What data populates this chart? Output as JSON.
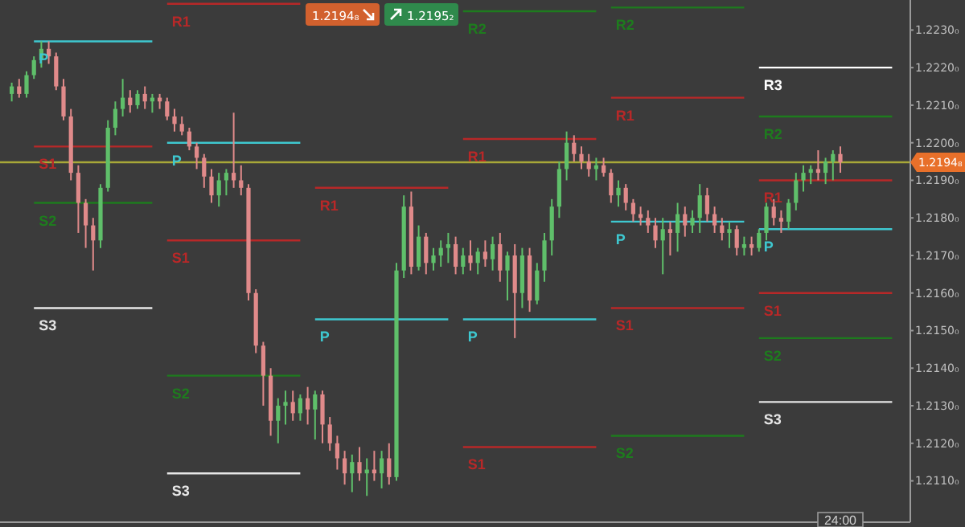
{
  "chart_data": {
    "type": "candlestick",
    "categories": [
      null,
      null,
      null,
      null,
      null,
      null,
      null,
      null,
      null,
      null,
      null,
      null,
      null,
      null,
      null,
      null,
      null,
      null,
      null,
      null,
      null,
      null,
      null,
      null,
      null,
      null,
      null,
      null,
      null,
      null,
      null,
      null,
      null,
      null,
      null,
      null,
      null,
      null,
      null,
      null,
      null,
      null,
      null,
      null,
      null,
      null,
      null,
      null,
      null,
      null,
      null,
      null,
      null,
      null,
      null,
      null,
      null,
      null,
      null,
      null,
      null,
      null,
      null,
      null,
      null,
      null,
      null,
      null,
      null,
      null,
      null,
      null,
      null,
      null,
      null,
      null,
      null,
      null,
      null,
      null,
      null,
      null,
      null,
      null,
      null,
      null,
      null,
      null,
      null,
      null,
      null,
      null,
      null,
      null,
      null,
      null,
      null,
      null,
      null,
      null,
      null,
      null,
      null,
      null,
      null,
      null,
      null,
      null,
      null,
      null,
      null,
      null,
      null,
      null,
      null,
      null,
      null,
      null,
      null,
      null
    ],
    "ohlc": [
      [
        1.2213,
        1.2216,
        1.2211,
        1.2215
      ],
      [
        1.2215,
        1.2217,
        1.2212,
        1.2213
      ],
      [
        1.2213,
        1.2219,
        1.2212,
        1.2218
      ],
      [
        1.2218,
        1.2223,
        1.2217,
        1.2222
      ],
      [
        1.2222,
        1.2227,
        1.222,
        1.2225
      ],
      [
        1.2225,
        1.2227,
        1.2221,
        1.2223
      ],
      [
        1.2223,
        1.2224,
        1.2214,
        1.2215
      ],
      [
        1.2215,
        1.2217,
        1.2206,
        1.2207
      ],
      [
        1.2207,
        1.2209,
        1.219,
        1.2192
      ],
      [
        1.2192,
        1.2194,
        1.2176,
        1.2184
      ],
      [
        1.2184,
        1.2185,
        1.2172,
        1.2178
      ],
      [
        1.2178,
        1.218,
        1.2166,
        1.2174
      ],
      [
        1.2174,
        1.2189,
        1.2172,
        1.2188
      ],
      [
        1.2188,
        1.2206,
        1.2187,
        1.2204
      ],
      [
        1.2204,
        1.2211,
        1.2202,
        1.2209
      ],
      [
        1.2209,
        1.2217,
        1.2207,
        1.2212
      ],
      [
        1.2212,
        1.2214,
        1.2208,
        1.221
      ],
      [
        1.221,
        1.2214,
        1.2209,
        1.2213
      ],
      [
        1.2213,
        1.2215,
        1.2209,
        1.2211
      ],
      [
        1.2211,
        1.2213,
        1.2208,
        1.2212
      ],
      [
        1.2212,
        1.2213,
        1.2209,
        1.2211
      ],
      [
        1.2211,
        1.2212,
        1.2206,
        1.2207
      ],
      [
        1.2207,
        1.2209,
        1.2203,
        1.2205
      ],
      [
        1.2205,
        1.2207,
        1.2202,
        1.2203
      ],
      [
        1.2203,
        1.2204,
        1.2198,
        1.2199
      ],
      [
        1.2199,
        1.22,
        1.2193,
        1.2196
      ],
      [
        1.2196,
        1.2197,
        1.2188,
        1.2191
      ],
      [
        1.2191,
        1.2193,
        1.2184,
        1.2186
      ],
      [
        1.2186,
        1.2192,
        1.2183,
        1.219
      ],
      [
        1.219,
        1.2193,
        1.2186,
        1.2192
      ],
      [
        1.2192,
        1.2208,
        1.2188,
        1.219
      ],
      [
        1.219,
        1.2194,
        1.2186,
        1.2188
      ],
      [
        1.2188,
        1.2189,
        1.2158,
        1.216
      ],
      [
        1.216,
        1.2161,
        1.2144,
        1.2146
      ],
      [
        1.2146,
        1.2147,
        1.213,
        1.2138
      ],
      [
        1.2138,
        1.214,
        1.2122,
        1.2126
      ],
      [
        1.2126,
        1.2132,
        1.212,
        1.213
      ],
      [
        1.213,
        1.2134,
        1.2125,
        1.2131
      ],
      [
        1.2131,
        1.2134,
        1.2126,
        1.2128
      ],
      [
        1.2128,
        1.2133,
        1.2126,
        1.2132
      ],
      [
        1.2132,
        1.2135,
        1.2125,
        1.2129
      ],
      [
        1.2129,
        1.2134,
        1.2121,
        1.2133
      ],
      [
        1.2133,
        1.2134,
        1.212,
        1.2125
      ],
      [
        1.2125,
        1.2127,
        1.2118,
        1.212
      ],
      [
        1.212,
        1.2122,
        1.2113,
        1.2116
      ],
      [
        1.2116,
        1.2118,
        1.2109,
        1.2112
      ],
      [
        1.2112,
        1.2117,
        1.2107,
        1.2115
      ],
      [
        1.2115,
        1.2119,
        1.211,
        1.2112
      ],
      [
        1.2112,
        1.2116,
        1.2106,
        1.2113
      ],
      [
        1.2113,
        1.2118,
        1.211,
        1.2112
      ],
      [
        1.2112,
        1.2118,
        1.2108,
        1.2116
      ],
      [
        1.2116,
        1.212,
        1.2109,
        1.2111
      ],
      [
        1.2111,
        1.2168,
        1.211,
        1.2166
      ],
      [
        1.2166,
        1.2186,
        1.2164,
        1.2183
      ],
      [
        1.2183,
        1.2187,
        1.2165,
        1.2167
      ],
      [
        1.2167,
        1.2178,
        1.2166,
        1.2175
      ],
      [
        1.2175,
        1.2176,
        1.2165,
        1.2168
      ],
      [
        1.2168,
        1.2172,
        1.2166,
        1.217
      ],
      [
        1.217,
        1.2174,
        1.2167,
        1.2172
      ],
      [
        1.2172,
        1.2176,
        1.2168,
        1.2173
      ],
      [
        1.2173,
        1.2175,
        1.2165,
        1.2167
      ],
      [
        1.2167,
        1.2172,
        1.2165,
        1.217
      ],
      [
        1.217,
        1.2174,
        1.2166,
        1.2168
      ],
      [
        1.2168,
        1.2172,
        1.2165,
        1.2171
      ],
      [
        1.2171,
        1.2174,
        1.2167,
        1.2169
      ],
      [
        1.2169,
        1.2175,
        1.2166,
        1.2173
      ],
      [
        1.2173,
        1.2176,
        1.2163,
        1.2166
      ],
      [
        1.2166,
        1.2171,
        1.2158,
        1.217
      ],
      [
        1.217,
        1.2173,
        1.2148,
        1.216
      ],
      [
        1.216,
        1.2172,
        1.2156,
        1.217
      ],
      [
        1.217,
        1.2172,
        1.2155,
        1.2158
      ],
      [
        1.2158,
        1.2168,
        1.2157,
        1.2166
      ],
      [
        1.2166,
        1.2176,
        1.2163,
        1.2174
      ],
      [
        1.2174,
        1.2185,
        1.217,
        1.2183
      ],
      [
        1.2183,
        1.2195,
        1.218,
        1.2193
      ],
      [
        1.2193,
        1.2203,
        1.219,
        1.22
      ],
      [
        1.22,
        1.2202,
        1.2195,
        1.2197
      ],
      [
        1.2197,
        1.2199,
        1.2193,
        1.2195
      ],
      [
        1.2195,
        1.2197,
        1.2191,
        1.2193
      ],
      [
        1.2193,
        1.2196,
        1.219,
        1.2194
      ],
      [
        1.2194,
        1.2196,
        1.2191,
        1.2192
      ],
      [
        1.2192,
        1.2193,
        1.2184,
        1.2186
      ],
      [
        1.2186,
        1.219,
        1.2183,
        1.2188
      ],
      [
        1.2188,
        1.2189,
        1.2182,
        1.2184
      ],
      [
        1.2184,
        1.2185,
        1.2179,
        1.2181
      ],
      [
        1.2181,
        1.2183,
        1.2178,
        1.218
      ],
      [
        1.218,
        1.2182,
        1.2176,
        1.2178
      ],
      [
        1.2178,
        1.218,
        1.2172,
        1.2174
      ],
      [
        1.2174,
        1.218,
        1.2165,
        1.2177
      ],
      [
        1.2177,
        1.2179,
        1.217,
        1.2176
      ],
      [
        1.2176,
        1.2184,
        1.2171,
        1.2181
      ],
      [
        1.2181,
        1.2183,
        1.2175,
        1.2178
      ],
      [
        1.2178,
        1.2182,
        1.2176,
        1.218
      ],
      [
        1.218,
        1.2189,
        1.2176,
        1.2186
      ],
      [
        1.2186,
        1.2188,
        1.2179,
        1.2181
      ],
      [
        1.2181,
        1.2183,
        1.2176,
        1.2178
      ],
      [
        1.2178,
        1.218,
        1.2174,
        1.2176
      ],
      [
        1.2176,
        1.2179,
        1.2172,
        1.2177
      ],
      [
        1.2177,
        1.2178,
        1.217,
        1.2172
      ],
      [
        1.2172,
        1.2175,
        1.217,
        1.2173
      ],
      [
        1.2173,
        1.2175,
        1.217,
        1.2172
      ],
      [
        1.2172,
        1.2177,
        1.2171,
        1.2176
      ],
      [
        1.2176,
        1.2184,
        1.2174,
        1.2183
      ],
      [
        1.2183,
        1.2185,
        1.2178,
        1.218
      ],
      [
        1.218,
        1.2182,
        1.2176,
        1.2179
      ],
      [
        1.2179,
        1.2185,
        1.2177,
        1.2184
      ],
      [
        1.2184,
        1.2192,
        1.2182,
        1.219
      ],
      [
        1.219,
        1.2194,
        1.2187,
        1.2192
      ],
      [
        1.2192,
        1.2194,
        1.2189,
        1.2193
      ],
      [
        1.2193,
        1.2198,
        1.219,
        1.2192
      ],
      [
        1.2192,
        1.2196,
        1.2189,
        1.2195
      ],
      [
        1.2195,
        1.2198,
        1.219,
        1.2197
      ],
      [
        1.2197,
        1.2199,
        1.2192,
        1.21948
      ],
      null,
      null,
      null,
      null,
      null,
      null,
      null
    ],
    "colors": [
      "#5fbf6a",
      "#e08a8a",
      "#5fbf6a",
      "#5fbf6a",
      "#5fbf6a",
      "#e08a8a",
      "#e08a8a",
      "#e08a8a",
      "#e08a8a",
      "#e08a8a",
      "#e08a8a",
      "#e08a8a",
      "#5fbf6a",
      "#5fbf6a",
      "#5fbf6a",
      "#5fbf6a",
      "#e08a8a",
      "#5fbf6a",
      "#e08a8a",
      "#5fbf6a",
      "#e08a8a",
      "#e08a8a",
      "#e08a8a",
      "#e08a8a",
      "#e08a8a",
      "#e08a8a",
      "#e08a8a",
      "#e08a8a",
      "#5fbf6a",
      "#5fbf6a",
      "#e08a8a",
      "#e08a8a",
      "#e08a8a",
      "#e08a8a",
      "#e08a8a",
      "#e08a8a",
      "#5fbf6a",
      "#5fbf6a",
      "#e08a8a",
      "#5fbf6a",
      "#e08a8a",
      "#5fbf6a",
      "#e08a8a",
      "#e08a8a",
      "#e08a8a",
      "#e08a8a",
      "#5fbf6a",
      "#e08a8a",
      "#5fbf6a",
      "#e08a8a",
      "#5fbf6a",
      "#e08a8a",
      "#5fbf6a",
      "#5fbf6a",
      "#e08a8a",
      "#5fbf6a",
      "#e08a8a",
      "#5fbf6a",
      "#5fbf6a",
      "#5fbf6a",
      "#e08a8a",
      "#5fbf6a",
      "#e08a8a",
      "#5fbf6a",
      "#e08a8a",
      "#5fbf6a",
      "#e08a8a",
      "#5fbf6a",
      "#e08a8a",
      "#5fbf6a",
      "#e08a8a",
      "#5fbf6a",
      "#5fbf6a",
      "#5fbf6a",
      "#5fbf6a",
      "#5fbf6a",
      "#e08a8a",
      "#e08a8a",
      "#e08a8a",
      "#5fbf6a",
      "#e08a8a",
      "#e08a8a",
      "#5fbf6a",
      "#e08a8a",
      "#e08a8a",
      "#e08a8a",
      "#e08a8a",
      "#e08a8a",
      "#5fbf6a",
      "#e08a8a",
      "#5fbf6a",
      "#e08a8a",
      "#5fbf6a",
      "#5fbf6a",
      "#e08a8a",
      "#e08a8a",
      "#e08a8a",
      "#5fbf6a",
      "#e08a8a",
      "#5fbf6a",
      "#e08a8a",
      "#5fbf6a",
      "#5fbf6a",
      "#e08a8a",
      "#e08a8a",
      "#5fbf6a",
      "#5fbf6a",
      "#5fbf6a",
      "#5fbf6a",
      "#e08a8a",
      "#5fbf6a",
      "#5fbf6a",
      "#e08a8a",
      null,
      null,
      null,
      null,
      null,
      null,
      null
    ],
    "series": [
      {
        "type": "line",
        "name": "P",
        "color": "#3ec8d0",
        "values": [
          null,
          null,
          null,
          1.2227,
          1.2227,
          1.2227,
          1.2227,
          1.2227,
          1.2227,
          1.2227,
          1.2227,
          1.2227,
          1.2227,
          1.2227,
          1.2227,
          1.2227,
          1.2227,
          1.2227,
          1.2227,
          1.2227,
          null,
          1.22,
          1.22,
          1.22,
          1.22,
          1.22,
          1.22,
          1.22,
          1.22,
          1.22,
          1.22,
          1.22,
          1.22,
          1.22,
          1.22,
          1.22,
          1.22,
          1.22,
          1.22,
          1.22,
          null,
          1.2153,
          1.2153,
          1.2153,
          1.2153,
          1.2153,
          1.2153,
          1.2153,
          1.2153,
          1.2153,
          1.2153,
          1.2153,
          1.2153,
          1.2153,
          1.2153,
          1.2153,
          1.2153,
          1.2153,
          1.2153,
          1.2153,
          null,
          1.2153,
          1.2153,
          1.2153,
          1.2153,
          1.2153,
          1.2153,
          1.2153,
          1.2153,
          1.2153,
          1.2153,
          1.2153,
          1.2153,
          1.2153,
          1.2153,
          1.2153,
          1.2153,
          1.2153,
          1.2153,
          1.2153,
          null,
          1.2179,
          1.2179,
          1.2179,
          1.2179,
          1.2179,
          1.2179,
          1.2179,
          1.2179,
          1.2179,
          1.2179,
          1.2179,
          1.2179,
          1.2179,
          1.2179,
          1.2179,
          1.2179,
          1.2179,
          1.2179,
          1.2179,
          null,
          1.2177,
          1.2177,
          1.2177,
          1.2177,
          1.2177,
          1.2177,
          1.2177,
          1.2177,
          1.2177,
          1.2177,
          1.2177,
          1.2177,
          1.2177,
          1.2177,
          1.2177,
          1.2177,
          1.2177,
          1.2177,
          1.2177
        ]
      },
      {
        "type": "line",
        "name": "R1",
        "color": "#b82828",
        "values": [
          null,
          null,
          null,
          null,
          null,
          null,
          null,
          null,
          null,
          null,
          null,
          null,
          null,
          null,
          null,
          null,
          null,
          null,
          null,
          null,
          null,
          1.2237,
          1.2237,
          1.2237,
          1.2237,
          1.2237,
          1.2237,
          1.2237,
          1.2237,
          1.2237,
          1.2237,
          1.2237,
          1.2237,
          1.2237,
          1.2237,
          1.2237,
          1.2237,
          1.2237,
          1.2237,
          1.2237,
          null,
          1.2188,
          1.2188,
          1.2188,
          1.2188,
          1.2188,
          1.2188,
          1.2188,
          1.2188,
          1.2188,
          1.2188,
          1.2188,
          1.2188,
          1.2188,
          1.2188,
          1.2188,
          1.2188,
          1.2188,
          1.2188,
          1.2188,
          null,
          1.2201,
          1.2201,
          1.2201,
          1.2201,
          1.2201,
          1.2201,
          1.2201,
          1.2201,
          1.2201,
          1.2201,
          1.2201,
          1.2201,
          1.2201,
          1.2201,
          1.2201,
          1.2201,
          1.2201,
          1.2201,
          1.2201,
          null,
          1.2212,
          1.2212,
          1.2212,
          1.2212,
          1.2212,
          1.2212,
          1.2212,
          1.2212,
          1.2212,
          1.2212,
          1.2212,
          1.2212,
          1.2212,
          1.2212,
          1.2212,
          1.2212,
          1.2212,
          1.2212,
          1.2212,
          null,
          1.219,
          1.219,
          1.219,
          1.219,
          1.219,
          1.219,
          1.219,
          1.219,
          1.219,
          1.219,
          1.219,
          1.219,
          1.219,
          1.219,
          1.219,
          1.219,
          1.219,
          1.219,
          1.219
        ]
      },
      {
        "type": "line",
        "name": "R2",
        "color": "#1e7b1e",
        "values": [
          null,
          null,
          null,
          null,
          null,
          null,
          null,
          null,
          null,
          null,
          null,
          null,
          null,
          null,
          null,
          null,
          null,
          null,
          null,
          null,
          null,
          null,
          null,
          null,
          null,
          null,
          null,
          null,
          null,
          null,
          null,
          null,
          null,
          null,
          null,
          null,
          null,
          null,
          null,
          null,
          null,
          null,
          null,
          null,
          null,
          null,
          null,
          null,
          null,
          null,
          null,
          null,
          null,
          null,
          null,
          null,
          null,
          null,
          null,
          null,
          null,
          1.2235,
          1.2235,
          1.2235,
          1.2235,
          1.2235,
          1.2235,
          1.2235,
          1.2235,
          1.2235,
          1.2235,
          1.2235,
          1.2235,
          1.2235,
          1.2235,
          1.2235,
          1.2235,
          1.2235,
          1.2235,
          1.2235,
          null,
          1.2236,
          1.2236,
          1.2236,
          1.2236,
          1.2236,
          1.2236,
          1.2236,
          1.2236,
          1.2236,
          1.2236,
          1.2236,
          1.2236,
          1.2236,
          1.2236,
          1.2236,
          1.2236,
          1.2236,
          1.2236,
          1.2236,
          null,
          1.2207,
          1.2207,
          1.2207,
          1.2207,
          1.2207,
          1.2207,
          1.2207,
          1.2207,
          1.2207,
          1.2207,
          1.2207,
          1.2207,
          1.2207,
          1.2207,
          1.2207,
          1.2207,
          1.2207,
          1.2207,
          1.2207
        ]
      },
      {
        "type": "line",
        "name": "R3",
        "color": "#ffffff",
        "values": [
          null,
          null,
          null,
          null,
          null,
          null,
          null,
          null,
          null,
          null,
          null,
          null,
          null,
          null,
          null,
          null,
          null,
          null,
          null,
          null,
          null,
          null,
          null,
          null,
          null,
          null,
          null,
          null,
          null,
          null,
          null,
          null,
          null,
          null,
          null,
          null,
          null,
          null,
          null,
          null,
          null,
          null,
          null,
          null,
          null,
          null,
          null,
          null,
          null,
          null,
          null,
          null,
          null,
          null,
          null,
          null,
          null,
          null,
          null,
          null,
          null,
          null,
          null,
          null,
          null,
          null,
          null,
          null,
          null,
          null,
          null,
          null,
          null,
          null,
          null,
          null,
          null,
          null,
          null,
          null,
          null,
          null,
          null,
          null,
          null,
          null,
          null,
          null,
          null,
          null,
          null,
          null,
          null,
          null,
          null,
          null,
          null,
          null,
          null,
          null,
          null,
          1.222,
          1.222,
          1.222,
          1.222,
          1.222,
          1.222,
          1.222,
          1.222,
          1.222,
          1.222,
          1.222,
          1.222,
          1.222,
          1.222,
          1.222,
          1.222,
          1.222,
          1.222,
          1.222
        ]
      },
      {
        "type": "line",
        "name": "S1",
        "color": "#b82828",
        "values": [
          null,
          null,
          null,
          1.2199,
          1.2199,
          1.2199,
          1.2199,
          1.2199,
          1.2199,
          1.2199,
          1.2199,
          1.2199,
          1.2199,
          1.2199,
          1.2199,
          1.2199,
          1.2199,
          1.2199,
          1.2199,
          1.2199,
          null,
          1.2174,
          1.2174,
          1.2174,
          1.2174,
          1.2174,
          1.2174,
          1.2174,
          1.2174,
          1.2174,
          1.2174,
          1.2174,
          1.2174,
          1.2174,
          1.2174,
          1.2174,
          1.2174,
          1.2174,
          1.2174,
          1.2174,
          null,
          null,
          null,
          null,
          null,
          null,
          null,
          null,
          null,
          null,
          null,
          null,
          null,
          null,
          null,
          null,
          null,
          null,
          null,
          null,
          null,
          1.2119,
          1.2119,
          1.2119,
          1.2119,
          1.2119,
          1.2119,
          1.2119,
          1.2119,
          1.2119,
          1.2119,
          1.2119,
          1.2119,
          1.2119,
          1.2119,
          1.2119,
          1.2119,
          1.2119,
          1.2119,
          1.2119,
          null,
          1.2156,
          1.2156,
          1.2156,
          1.2156,
          1.2156,
          1.2156,
          1.2156,
          1.2156,
          1.2156,
          1.2156,
          1.2156,
          1.2156,
          1.2156,
          1.2156,
          1.2156,
          1.2156,
          1.2156,
          1.2156,
          1.2156,
          null,
          1.216,
          1.216,
          1.216,
          1.216,
          1.216,
          1.216,
          1.216,
          1.216,
          1.216,
          1.216,
          1.216,
          1.216,
          1.216,
          1.216,
          1.216,
          1.216,
          1.216,
          1.216,
          1.216
        ]
      },
      {
        "type": "line",
        "name": "S2",
        "color": "#1e7b1e",
        "values": [
          null,
          null,
          null,
          1.2184,
          1.2184,
          1.2184,
          1.2184,
          1.2184,
          1.2184,
          1.2184,
          1.2184,
          1.2184,
          1.2184,
          1.2184,
          1.2184,
          1.2184,
          1.2184,
          1.2184,
          1.2184,
          1.2184,
          null,
          1.2138,
          1.2138,
          1.2138,
          1.2138,
          1.2138,
          1.2138,
          1.2138,
          1.2138,
          1.2138,
          1.2138,
          1.2138,
          1.2138,
          1.2138,
          1.2138,
          1.2138,
          1.2138,
          1.2138,
          1.2138,
          1.2138,
          null,
          null,
          null,
          null,
          null,
          null,
          null,
          null,
          null,
          null,
          null,
          null,
          null,
          null,
          null,
          null,
          null,
          null,
          null,
          null,
          null,
          null,
          null,
          null,
          null,
          null,
          null,
          null,
          null,
          null,
          null,
          null,
          null,
          null,
          null,
          null,
          null,
          null,
          null,
          null,
          null,
          1.2122,
          1.2122,
          1.2122,
          1.2122,
          1.2122,
          1.2122,
          1.2122,
          1.2122,
          1.2122,
          1.2122,
          1.2122,
          1.2122,
          1.2122,
          1.2122,
          1.2122,
          1.2122,
          1.2122,
          1.2122,
          1.2122,
          null,
          1.2148,
          1.2148,
          1.2148,
          1.2148,
          1.2148,
          1.2148,
          1.2148,
          1.2148,
          1.2148,
          1.2148,
          1.2148,
          1.2148,
          1.2148,
          1.2148,
          1.2148,
          1.2148,
          1.2148,
          1.2148,
          1.2148
        ]
      },
      {
        "type": "line",
        "name": "S3",
        "color": "#e6e6e6",
        "values": [
          null,
          null,
          null,
          1.2156,
          1.2156,
          1.2156,
          1.2156,
          1.2156,
          1.2156,
          1.2156,
          1.2156,
          1.2156,
          1.2156,
          1.2156,
          1.2156,
          1.2156,
          1.2156,
          1.2156,
          1.2156,
          1.2156,
          null,
          1.2112,
          1.2112,
          1.2112,
          1.2112,
          1.2112,
          1.2112,
          1.2112,
          1.2112,
          1.2112,
          1.2112,
          1.2112,
          1.2112,
          1.2112,
          1.2112,
          1.2112,
          1.2112,
          1.2112,
          1.2112,
          1.2112,
          null,
          null,
          null,
          null,
          null,
          null,
          null,
          null,
          null,
          null,
          null,
          null,
          null,
          null,
          null,
          null,
          null,
          null,
          null,
          null,
          null,
          null,
          null,
          null,
          null,
          null,
          null,
          null,
          null,
          null,
          null,
          null,
          null,
          null,
          null,
          null,
          null,
          null,
          null,
          null,
          null,
          null,
          null,
          null,
          null,
          null,
          null,
          null,
          null,
          null,
          null,
          null,
          null,
          null,
          null,
          null,
          null,
          null,
          null,
          null,
          null,
          1.2131,
          1.2131,
          1.2131,
          1.2131,
          1.2131,
          1.2131,
          1.2131,
          1.2131,
          1.2131,
          1.2131,
          1.2131,
          1.2131,
          1.2131,
          1.2131,
          1.2131,
          1.2131,
          1.2131,
          1.2131,
          1.2131
        ]
      }
    ],
    "ref_lines": [
      {
        "axis": "y",
        "value": 1.21948,
        "label": "1.2194₈",
        "color": "#a8a838"
      }
    ],
    "annotations": [
      "1.2194₈",
      "1.2195₂",
      "24:00"
    ],
    "ylim": [
      1.2099,
      1.2238
    ],
    "yticks": [
      {
        "value": 1.211,
        "label": "1.2110₀"
      },
      {
        "value": 1.212,
        "label": "1.2120₀"
      },
      {
        "value": 1.213,
        "label": "1.2130₀"
      },
      {
        "value": 1.214,
        "label": "1.2140₀"
      },
      {
        "value": 1.215,
        "label": "1.2150₀"
      },
      {
        "value": 1.216,
        "label": "1.2160₀"
      },
      {
        "value": 1.217,
        "label": "1.2170₀"
      },
      {
        "value": 1.218,
        "label": "1.2180₀"
      },
      {
        "value": 1.219,
        "label": "1.2190₀"
      },
      {
        "value": 1.22,
        "label": "1.2200₀"
      },
      {
        "value": 1.221,
        "label": "1.2210₀"
      },
      {
        "value": 1.222,
        "label": "1.2220₀"
      },
      {
        "value": 1.223,
        "label": "1.2230₀"
      }
    ],
    "grid": false
  }
}
